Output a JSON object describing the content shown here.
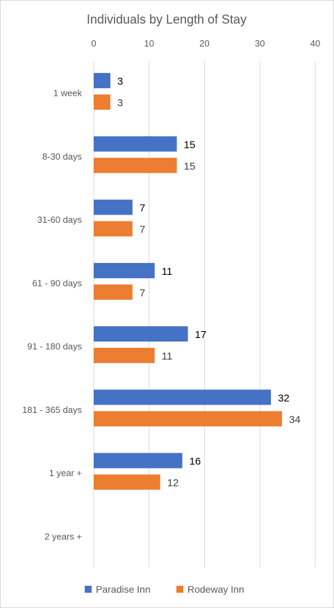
{
  "chart_data": {
    "type": "bar",
    "orientation": "horizontal",
    "title": "Individuals by Length of Stay",
    "categories": [
      "1 week",
      "8-30 days",
      "31-60 days",
      "61 - 90 days",
      "91 - 180 days",
      "181 - 365 days",
      "1 year +",
      "2 years +"
    ],
    "series": [
      {
        "name": "Paradise Inn",
        "color": "#4472C4",
        "values": [
          3,
          15,
          7,
          11,
          17,
          32,
          16,
          null
        ]
      },
      {
        "name": "Rodeway Inn",
        "color": "#ED7D31",
        "values": [
          3,
          15,
          7,
          7,
          11,
          34,
          12,
          null
        ]
      }
    ],
    "xlim": [
      0,
      40
    ],
    "xticks": [
      "0",
      "10",
      "20",
      "30",
      "40"
    ],
    "grid": true,
    "legend": "bottom",
    "data_labels": true
  }
}
